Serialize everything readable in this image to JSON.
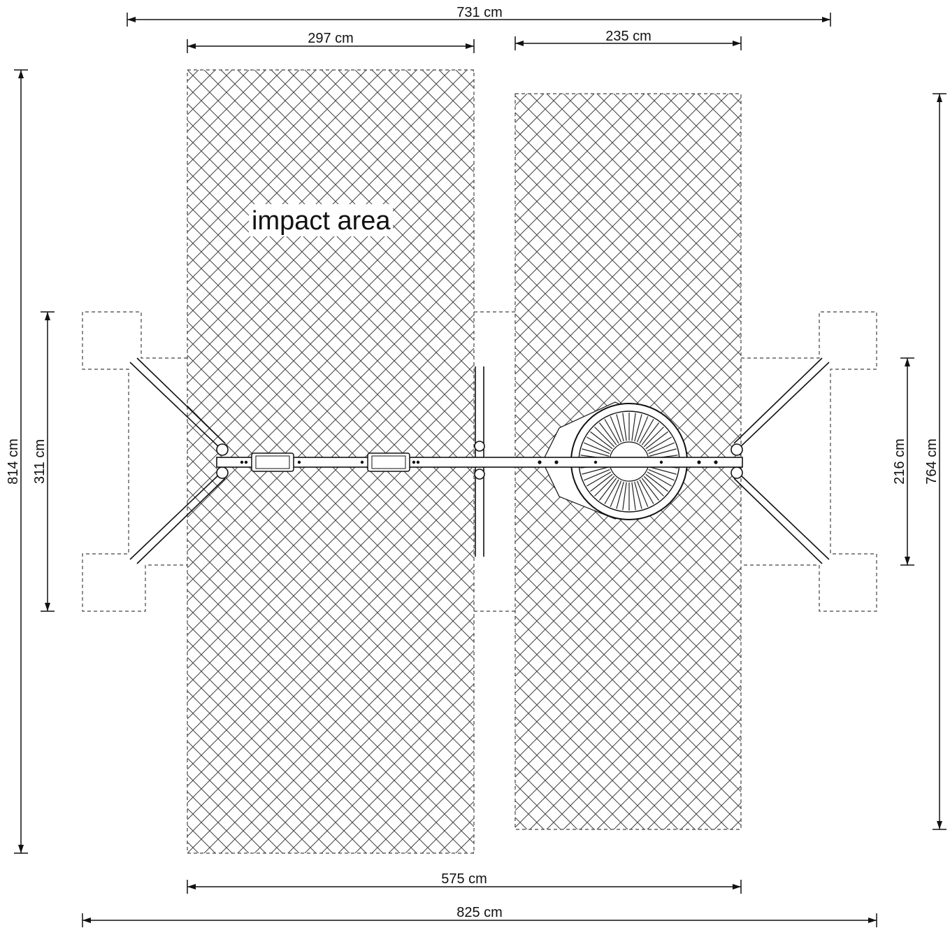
{
  "labels": {
    "impact_area": "impact area"
  },
  "dimensions": {
    "top_overall": "731 cm",
    "top_left": "297 cm",
    "top_right": "235 cm",
    "bottom_inner": "575 cm",
    "bottom_overall": "825 cm",
    "left_overall": "814 cm",
    "left_inner": "311 cm",
    "right_inner": "216 cm",
    "right_overall": "764 cm"
  }
}
